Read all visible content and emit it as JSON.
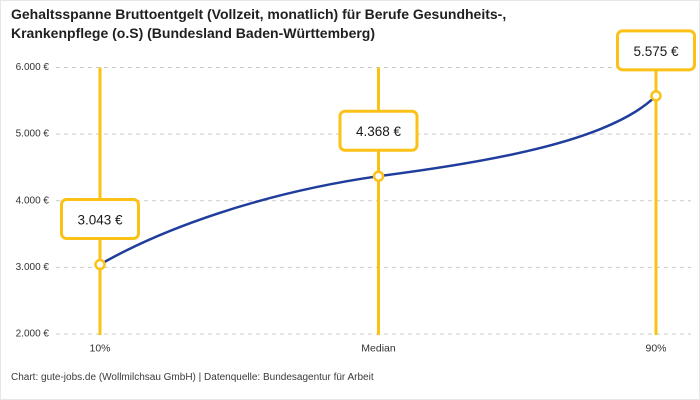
{
  "header": {
    "title_line1": "Gehaltsspanne Bruttoentgelt (Vollzeit, monatlich) für Berufe Gesundheits-,",
    "title_line2": "Krankenpflege (o.S) (Bundesland Baden-Württemberg)"
  },
  "footer": {
    "credit": "Chart: gute-jobs.de (Wollmilchsau GmbH) | Datenquelle: Bundesagentur für Arbeit"
  },
  "colors": {
    "accent_yellow": "#FCC117",
    "curve_blue": "#1F3D9C",
    "grid_gray": "#C9C9C9",
    "axis_text": "#333333",
    "label_text": "#1a1a1a",
    "marker_fill": "#ffffff"
  },
  "chart_data": {
    "type": "line",
    "title": "Gehaltsspanne Bruttoentgelt (Vollzeit, monatlich) für Berufe Gesundheits-, Krankenpflege (o.S) (Bundesland Baden-Württemberg)",
    "categories": [
      "10%",
      "Median",
      "90%"
    ],
    "values": [
      3043,
      4368,
      5575
    ],
    "value_labels": [
      "3.043 €",
      "4.368 €",
      "5.575 €"
    ],
    "unit": "€",
    "ylim": [
      2000,
      6000
    ],
    "y_ticks": [
      {
        "value": 6000,
        "label": "6.000 €"
      },
      {
        "value": 5000,
        "label": "5.000 €"
      },
      {
        "value": 4000,
        "label": "4.000 €"
      },
      {
        "value": 3000,
        "label": "3.000 €"
      },
      {
        "value": 2000,
        "label": "2.000 €"
      }
    ],
    "grid": "horizontal-dashed",
    "legend": "none",
    "xlabel": "",
    "ylabel": ""
  }
}
